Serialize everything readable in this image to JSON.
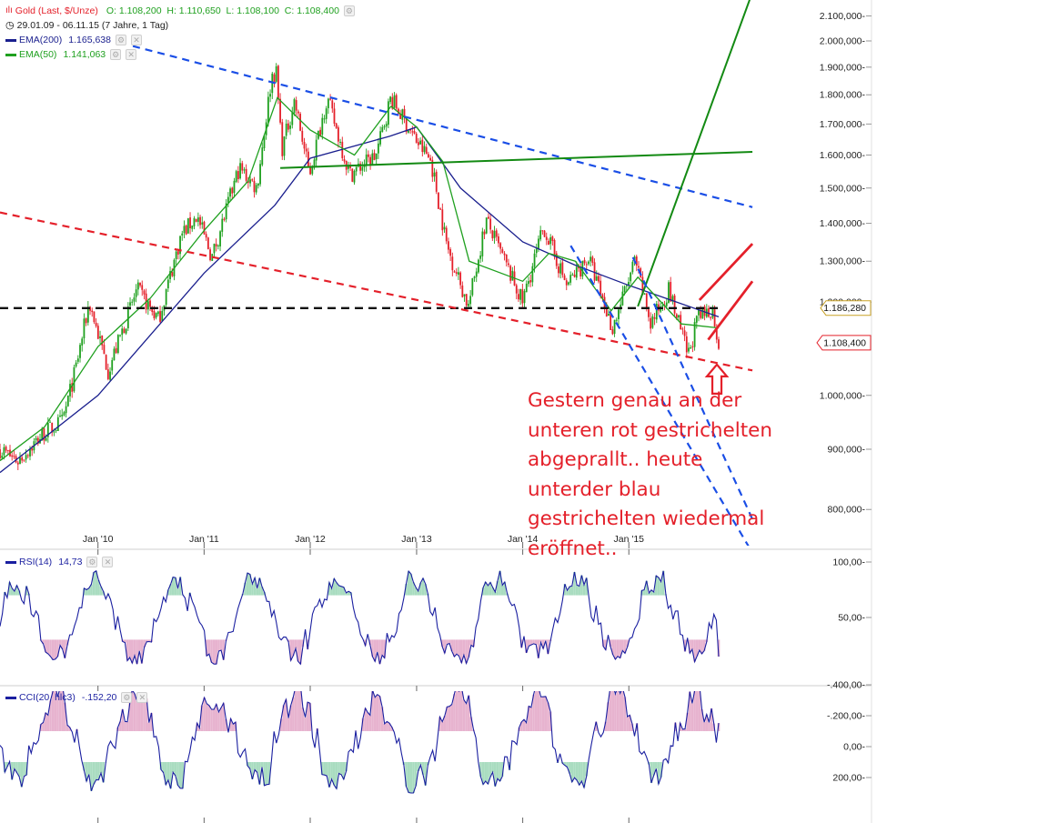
{
  "header": {
    "main_series": "Gold (Last, $/Unze)",
    "ohlc": "O: 1.108,200  H: 1.110,650  L: 1.108,100  C: 1.108,400",
    "range": "29.01.09 - 06.11.15 (7 Jahre, 1 Tag)",
    "ema200_label": "EMA(200)",
    "ema200_value": "1.165,638",
    "ema50_label": "EMA(50)",
    "ema50_value": "1.141,063"
  },
  "colors": {
    "candle_up": "#1fa01f",
    "candle_down": "#e4202a",
    "ema200": "#1a1f8e",
    "ema50": "#1fa01f",
    "trend_red": "#e4202a",
    "trend_blue": "#1a4ee6",
    "trend_green": "#138a13",
    "indicator": "#1a1fa0"
  },
  "annotation": {
    "lines": [
      "Gestern genau an der",
      "unteren rot gestrichelten",
      "abgeprallt.. heute",
      "unterder blau",
      "gestrichelten wiedermal",
      "eröffnet.."
    ]
  },
  "chart_data": [
    {
      "type": "line",
      "panel": "price",
      "title": "Gold (Last, $/Unze)",
      "x_tick_labels": [
        "Jan '10",
        "Jan '11",
        "Jan '12",
        "Jan '13",
        "Jan '14",
        "Jan '15"
      ],
      "y_tick_labels": [
        "2.100,000",
        "2.000,000",
        "1.900,000",
        "1.800,000",
        "1.700,000",
        "1.600,000",
        "1.500,000",
        "1.400,000",
        "1.300,000",
        "1.200,000",
        "1.000,000",
        "900,000",
        "800,000"
      ],
      "y_scale": "log",
      "ylim": [
        740,
        2160
      ],
      "x_range": [
        "2009-01-29",
        "2015-11-06"
      ],
      "price_labels": [
        {
          "text": "1.186,280",
          "value": 1186.28
        },
        {
          "text": "1.108,400",
          "value": 1108.4
        }
      ],
      "series": [
        {
          "name": "Gold (Last, $/Unze)",
          "style": "candles",
          "x": [
            "2009-01-29",
            "2009-04-01",
            "2009-07-01",
            "2009-09-01",
            "2009-10-15",
            "2009-12-02",
            "2010-02-05",
            "2010-05-15",
            "2010-07-28",
            "2010-10-15",
            "2010-12-07",
            "2011-01-28",
            "2011-05-01",
            "2011-07-01",
            "2011-08-22",
            "2011-09-06",
            "2011-09-26",
            "2011-11-08",
            "2011-12-29",
            "2012-02-28",
            "2012-05-16",
            "2012-08-15",
            "2012-10-04",
            "2012-12-28",
            "2013-02-20",
            "2013-04-15",
            "2013-06-28",
            "2013-08-28",
            "2013-12-31",
            "2014-03-14",
            "2014-06-01",
            "2014-08-15",
            "2014-11-05",
            "2015-01-22",
            "2015-03-17",
            "2015-05-18",
            "2015-07-24",
            "2015-08-24",
            "2015-10-14",
            "2015-11-06"
          ],
          "values": [
            900,
            880,
            930,
            950,
            1050,
            1200,
            1050,
            1230,
            1160,
            1370,
            1420,
            1310,
            1560,
            1500,
            1870,
            1880,
            1620,
            1780,
            1540,
            1790,
            1540,
            1600,
            1790,
            1650,
            1580,
            1340,
            1190,
            1410,
            1200,
            1390,
            1240,
            1310,
            1140,
            1300,
            1150,
            1230,
            1080,
            1160,
            1185,
            1108
          ]
        },
        {
          "name": "EMA(200)",
          "x": [
            "2009-01-29",
            "2010-01-01",
            "2011-01-01",
            "2011-09-01",
            "2012-01-01",
            "2012-10-01",
            "2013-01-01",
            "2013-06-01",
            "2014-01-01",
            "2014-07-01",
            "2015-01-01",
            "2015-11-06"
          ],
          "values": [
            860,
            1000,
            1270,
            1450,
            1590,
            1660,
            1690,
            1500,
            1350,
            1290,
            1240,
            1166
          ]
        },
        {
          "name": "EMA(50)",
          "x": [
            "2009-01-29",
            "2009-07-01",
            "2010-01-01",
            "2010-07-01",
            "2011-01-01",
            "2011-06-01",
            "2011-09-10",
            "2012-01-01",
            "2012-06-01",
            "2012-10-05",
            "2013-01-01",
            "2013-04-01",
            "2013-07-01",
            "2014-01-01",
            "2014-04-01",
            "2014-07-01",
            "2014-11-01",
            "2015-02-01",
            "2015-07-01",
            "2015-11-06"
          ],
          "values": [
            880,
            940,
            1100,
            1210,
            1380,
            1520,
            1790,
            1680,
            1600,
            1760,
            1690,
            1580,
            1300,
            1250,
            1320,
            1300,
            1180,
            1260,
            1150,
            1141
          ]
        }
      ],
      "trendlines": [
        {
          "name": "horizontal-dashed",
          "style": "dashed",
          "color": "black",
          "from": [
            "2009-01-29",
            1186
          ],
          "to": [
            "2015-11-06",
            1186
          ]
        },
        {
          "name": "upper-blue-dashed",
          "style": "dashed",
          "color": "blue",
          "from": [
            "2010-05-01",
            1980
          ],
          "to": [
            "2016-03-01",
            1445
          ]
        },
        {
          "name": "lower-red-dashed",
          "style": "dashed",
          "color": "red",
          "from": [
            "2009-01-29",
            1430
          ],
          "to": [
            "2016-03-01",
            1050
          ]
        },
        {
          "name": "green-flat",
          "style": "solid",
          "color": "green",
          "from": [
            "2011-09-20",
            1560
          ],
          "to": [
            "2016-03-01",
            1610
          ]
        },
        {
          "name": "green-steep",
          "style": "solid",
          "color": "green",
          "from": [
            "2015-02-01",
            1190
          ],
          "to": [
            "2016-03-01",
            2200
          ]
        },
        {
          "name": "channel-upper-blue-dashed",
          "style": "dashed",
          "color": "blue",
          "from": [
            "2015-01-15",
            1310
          ],
          "to": [
            "2016-03-01",
            785
          ]
        },
        {
          "name": "channel-lower-blue-dashed",
          "style": "dashed",
          "color": "blue",
          "from": [
            "2014-06-15",
            1340
          ],
          "to": [
            "2016-03-01",
            735
          ]
        },
        {
          "name": "red-channel-upper",
          "style": "solid",
          "color": "red",
          "from": [
            "2015-09-01",
            1205
          ],
          "to": [
            "2016-03-01",
            1345
          ]
        },
        {
          "name": "red-channel-lower",
          "style": "solid",
          "color": "red",
          "from": [
            "2015-10-01",
            1115
          ],
          "to": [
            "2016-03-01",
            1250
          ]
        }
      ],
      "markers": [
        {
          "name": "bounce-arrow",
          "shape": "up-arrow",
          "x": "2015-11-03",
          "y": 1085
        }
      ]
    },
    {
      "type": "line",
      "panel": "indicator",
      "title": "RSI(14)",
      "value_label": "14,73",
      "y_tick_labels": [
        "100,00",
        "50,00"
      ],
      "ylim": [
        0,
        100
      ],
      "series": [
        {
          "name": "RSI(14)",
          "x_range": [
            "2009-01-29",
            "2015-11-06"
          ],
          "pattern": "oscillating",
          "min": 8,
          "max": 92,
          "last": 14.73
        }
      ]
    },
    {
      "type": "line",
      "panel": "indicator",
      "title": "CCI(20, hlc3)",
      "value_label": "-.152,20",
      "y_tick_labels": [
        "200,00",
        "0,00",
        "-.200,00",
        "-.400,00"
      ],
      "ylim": [
        -420,
        310
      ],
      "series": [
        {
          "name": "CCI(20, hlc3)",
          "x_range": [
            "2009-01-29",
            "2015-11-06"
          ],
          "pattern": "oscillating",
          "min": -400,
          "max": 300,
          "last": -152.2
        }
      ]
    }
  ]
}
